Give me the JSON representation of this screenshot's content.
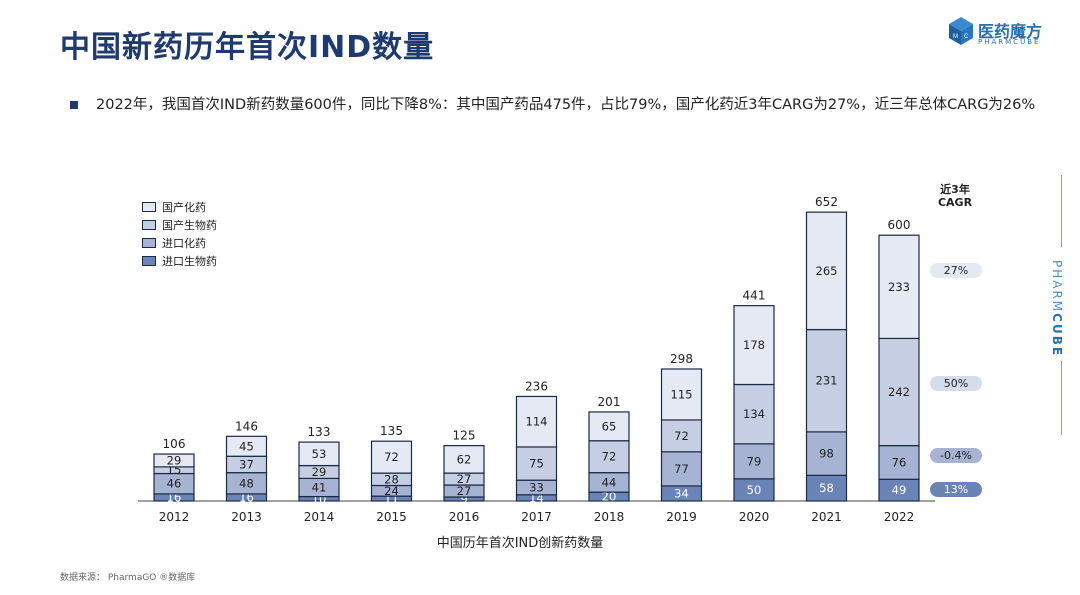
{
  "header": {
    "title": "中国新药历年首次IND数量",
    "logo_name": "医药魔方",
    "logo_sub": "PHARMCUBE"
  },
  "summary": "2022年，我国首次IND新药数量600件，同比下降8%：其中国产药品475件，占比79%，国产化药近3年CARG为27%，近三年总体CARG为26%",
  "side_brand": {
    "part1": "PHARM",
    "part2": "CUBE"
  },
  "cagr": {
    "heading_line1": "近3年",
    "heading_line2": "CAGR",
    "values": [
      "27%",
      "50%",
      "-0.4%",
      "13%"
    ]
  },
  "source": "数据来源： PharmaGO ®数据库",
  "colors": {
    "domestic_chem": "#e4e9f3",
    "domestic_bio": "#c5cee3",
    "import_chem": "#a7b3d2",
    "import_bio": "#6a84b8",
    "border": "#1a2a44",
    "title": "#1f3a6e"
  },
  "chart_data": {
    "type": "bar",
    "stacked": true,
    "xlabel": "中国历年首次IND创新药数量",
    "categories": [
      "2012",
      "2013",
      "2014",
      "2015",
      "2016",
      "2017",
      "2018",
      "2019",
      "2020",
      "2021",
      "2022"
    ],
    "series": [
      {
        "name": "进口生物药",
        "values": [
          16,
          16,
          10,
          11,
          9,
          14,
          20,
          34,
          50,
          58,
          49
        ]
      },
      {
        "name": "进口化药",
        "values": [
          46,
          48,
          41,
          24,
          27,
          33,
          44,
          77,
          79,
          98,
          76
        ]
      },
      {
        "name": "国产生物药",
        "values": [
          15,
          37,
          29,
          28,
          27,
          75,
          72,
          72,
          134,
          231,
          242
        ]
      },
      {
        "name": "国产化药",
        "values": [
          29,
          45,
          53,
          72,
          62,
          114,
          65,
          115,
          178,
          265,
          233
        ]
      }
    ],
    "totals": [
      106,
      146,
      133,
      135,
      125,
      236,
      201,
      298,
      441,
      652,
      600
    ],
    "legend_order": [
      "国产化药",
      "国产生物药",
      "进口化药",
      "进口生物药"
    ]
  }
}
